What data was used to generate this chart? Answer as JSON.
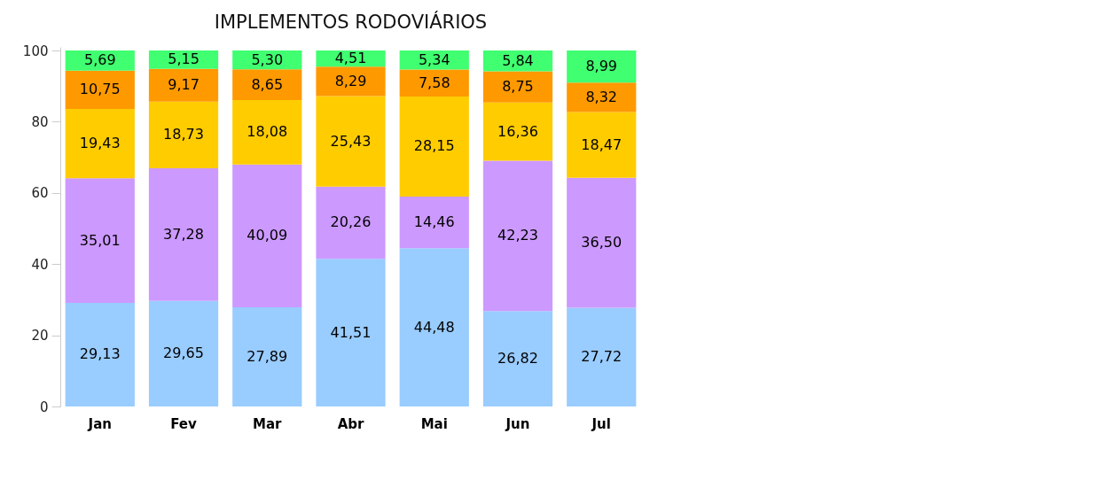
{
  "chart_data": {
    "type": "bar",
    "title": "IMPLEMENTOS RODOVIÁRIOS",
    "stacked": true,
    "categories": [
      "Jan",
      "Fev",
      "Mar",
      "Abr",
      "Mai",
      "Jun",
      "Jul"
    ],
    "series": [
      {
        "color": "#99ccff",
        "values": [
          29.13,
          29.65,
          27.89,
          41.51,
          44.48,
          26.82,
          27.72
        ],
        "value_labels": [
          "29,13",
          "29,65",
          "27,89",
          "41,51",
          "44,48",
          "26,82",
          "27,72"
        ]
      },
      {
        "color": "#cc99ff",
        "values": [
          35.01,
          37.28,
          40.09,
          20.26,
          14.46,
          42.23,
          36.5
        ],
        "value_labels": [
          "35,01",
          "37,28",
          "40,09",
          "20,26",
          "14,46",
          "42,23",
          "36,50"
        ]
      },
      {
        "color": "#ffcc00",
        "values": [
          19.43,
          18.73,
          18.08,
          25.43,
          28.15,
          16.36,
          18.47
        ],
        "value_labels": [
          "19,43",
          "18,73",
          "18,08",
          "25,43",
          "28,15",
          "16,36",
          "18,47"
        ]
      },
      {
        "color": "#ff9900",
        "values": [
          10.75,
          9.17,
          8.65,
          8.29,
          7.58,
          8.75,
          8.32
        ],
        "value_labels": [
          "10,75",
          "9,17",
          "8,65",
          "8,29",
          "7,58",
          "8,75",
          "8,32"
        ]
      },
      {
        "color": "#40ff70",
        "values": [
          5.69,
          5.15,
          5.3,
          4.51,
          5.34,
          5.84,
          8.99
        ],
        "value_labels": [
          "5,69",
          "5,15",
          "5,30",
          "4,51",
          "5,34",
          "5,84",
          "8,99"
        ]
      }
    ],
    "ylim": [
      0,
      101
    ],
    "yticks": [
      0,
      20,
      40,
      60,
      80,
      100
    ],
    "grid": false,
    "legend": false
  }
}
